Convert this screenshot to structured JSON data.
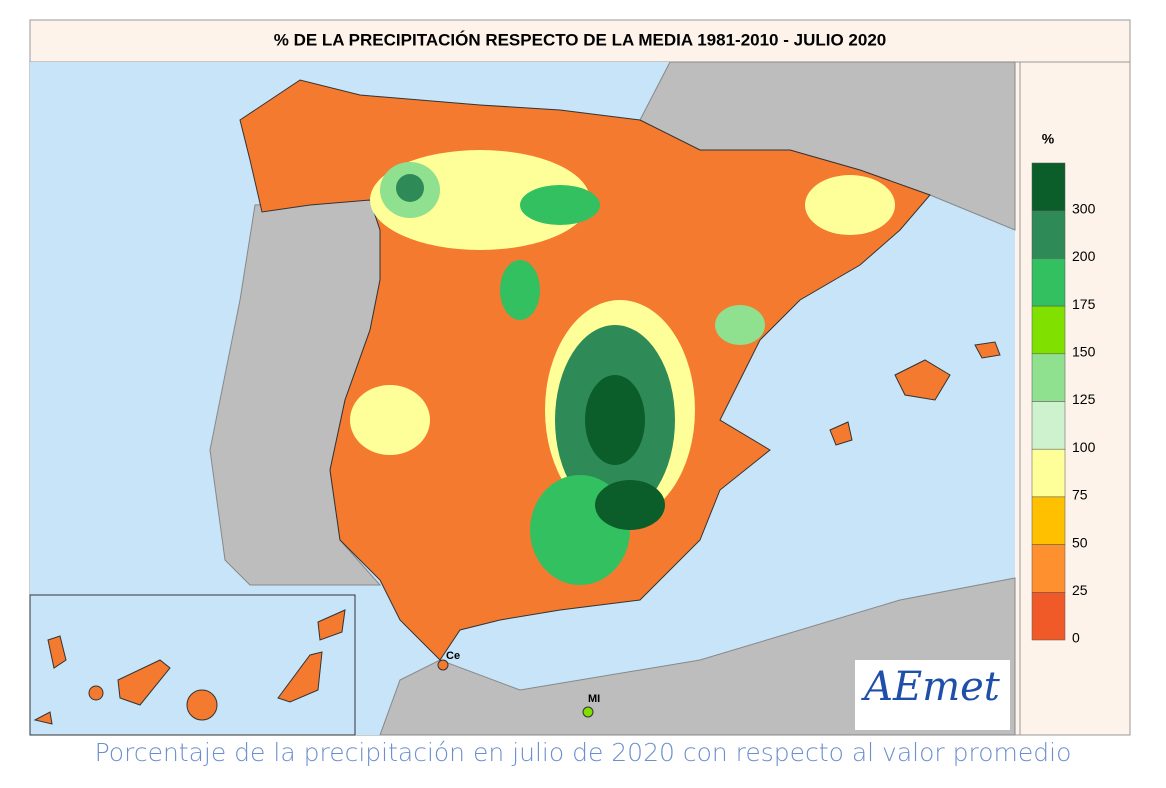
{
  "title": "% DE LA PRECIPITACIÓN RESPECTO DE LA MEDIA 1981-2010 - JULIO 2020",
  "legend": {
    "unit": "%",
    "ticks": [
      300,
      200,
      175,
      150,
      125,
      100,
      75,
      50,
      25,
      0
    ],
    "colors": [
      "#0b5e2a",
      "#2e8b57",
      "#33c060",
      "#80e000",
      "#8fe08f",
      "#cdf2cd",
      "#ffff99",
      "#ffc000",
      "#ff9030",
      "#f05a28"
    ]
  },
  "places": [
    "Ce",
    "MI"
  ],
  "logo": "AEmet",
  "caption": "Porcentaje de la precipitación en julio de 2020 con respecto al valor promedio"
}
